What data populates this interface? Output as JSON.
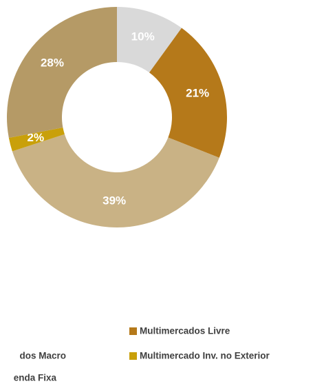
{
  "chart_data": {
    "type": "donut",
    "categories": [
      null,
      "Multimercados Livre",
      "enda Fixa",
      "Multimercado Inv. no Exterior",
      "dos Macro"
    ],
    "values": [
      10,
      21,
      39,
      2,
      28
    ],
    "value_labels": [
      "10%",
      "21%",
      "39%",
      "2%",
      "28%"
    ],
    "colors": [
      "#d9d9d9",
      "#b5791a",
      "#c9b285",
      "#c9a00a",
      "#b59a66"
    ]
  }
}
